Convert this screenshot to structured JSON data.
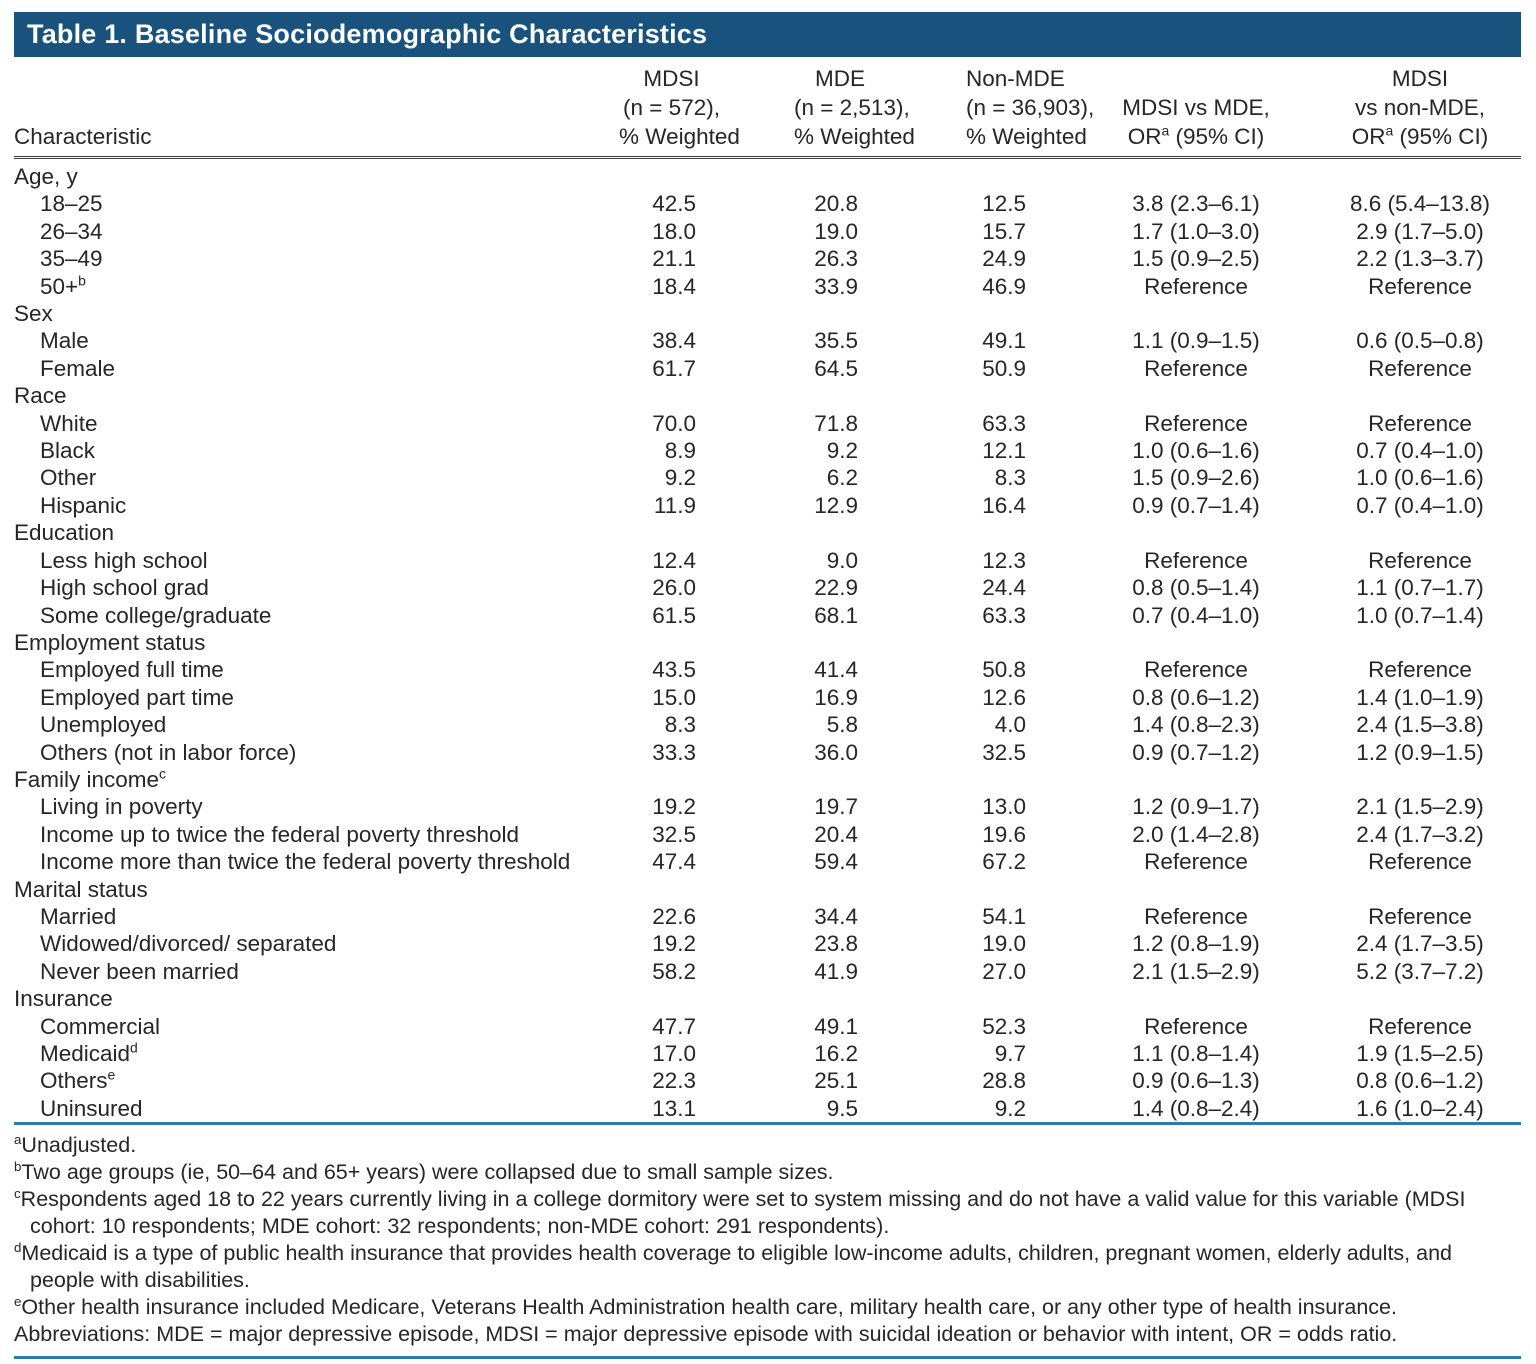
{
  "title": "Table 1. Baseline Sociodemographic Characteristics",
  "colors": {
    "title_bar_bg": "#1a527e",
    "title_text": "#ffffff",
    "rule_blue": "#2e7cab",
    "rule_dark": "#3c3c3c",
    "body_text": "#262626"
  },
  "header": {
    "characteristic": "Characteristic",
    "columns": [
      {
        "lines": [
          "MDSI",
          "(n = 572),",
          "% Weighted"
        ]
      },
      {
        "lines": [
          "MDE",
          "(n = 2,513),",
          "% Weighted"
        ]
      },
      {
        "lines": [
          "Non-MDE",
          "(n = 36,903),",
          "% Weighted"
        ]
      },
      {
        "lines": [
          "MDSI vs MDE,",
          "OR^a (95% CI)"
        ]
      },
      {
        "lines": [
          "MDSI",
          "vs non-MDE,",
          "OR^a (95% CI)"
        ]
      }
    ]
  },
  "sections": [
    {
      "label": "Age, y",
      "rows": [
        {
          "label": "18–25",
          "cells": [
            "42.5",
            "20.8",
            "12.5",
            "3.8 (2.3–6.1)",
            "8.6 (5.4–13.8)"
          ]
        },
        {
          "label": "26–34",
          "cells": [
            "18.0",
            "19.0",
            "15.7",
            "1.7 (1.0–3.0)",
            "2.9 (1.7–5.0)"
          ]
        },
        {
          "label": "35–49",
          "cells": [
            "21.1",
            "26.3",
            "24.9",
            "1.5 (0.9–2.5)",
            "2.2 (1.3–3.7)"
          ]
        },
        {
          "label": "50+^b",
          "cells": [
            "18.4",
            "33.9",
            "46.9",
            "Reference",
            "Reference"
          ]
        }
      ]
    },
    {
      "label": "Sex",
      "rows": [
        {
          "label": "Male",
          "cells": [
            "38.4",
            "35.5",
            "49.1",
            "1.1 (0.9–1.5)",
            "0.6 (0.5–0.8)"
          ]
        },
        {
          "label": "Female",
          "cells": [
            "61.7",
            "64.5",
            "50.9",
            "Reference",
            "Reference"
          ]
        }
      ]
    },
    {
      "label": "Race",
      "rows": [
        {
          "label": "White",
          "cells": [
            "70.0",
            "71.8",
            "63.3",
            "Reference",
            "Reference"
          ]
        },
        {
          "label": "Black",
          "cells": [
            "8.9",
            "9.2",
            "12.1",
            "1.0 (0.6–1.6)",
            "0.7 (0.4–1.0)"
          ]
        },
        {
          "label": "Other",
          "cells": [
            "9.2",
            "6.2",
            "8.3",
            "1.5 (0.9–2.6)",
            "1.0 (0.6–1.6)"
          ]
        },
        {
          "label": "Hispanic",
          "cells": [
            "11.9",
            "12.9",
            "16.4",
            "0.9 (0.7–1.4)",
            "0.7 (0.4–1.0)"
          ]
        }
      ]
    },
    {
      "label": "Education",
      "rows": [
        {
          "label": "Less high school",
          "cells": [
            "12.4",
            "9.0",
            "12.3",
            "Reference",
            "Reference"
          ]
        },
        {
          "label": "High school grad",
          "cells": [
            "26.0",
            "22.9",
            "24.4",
            "0.8 (0.5–1.4)",
            "1.1 (0.7–1.7)"
          ]
        },
        {
          "label": "Some college/graduate",
          "cells": [
            "61.5",
            "68.1",
            "63.3",
            "0.7 (0.4–1.0)",
            "1.0 (0.7–1.4)"
          ]
        }
      ]
    },
    {
      "label": "Employment status",
      "rows": [
        {
          "label": "Employed full time",
          "cells": [
            "43.5",
            "41.4",
            "50.8",
            "Reference",
            "Reference"
          ]
        },
        {
          "label": "Employed part time",
          "cells": [
            "15.0",
            "16.9",
            "12.6",
            "0.8 (0.6–1.2)",
            "1.4 (1.0–1.9)"
          ]
        },
        {
          "label": "Unemployed",
          "cells": [
            "8.3",
            "5.8",
            "4.0",
            "1.4 (0.8–2.3)",
            "2.4 (1.5–3.8)"
          ]
        },
        {
          "label": "Others (not in labor force)",
          "cells": [
            "33.3",
            "36.0",
            "32.5",
            "0.9 (0.7–1.2)",
            "1.2 (0.9–1.5)"
          ]
        }
      ]
    },
    {
      "label": "Family income^c",
      "rows": [
        {
          "label": "Living in poverty",
          "cells": [
            "19.2",
            "19.7",
            "13.0",
            "1.2 (0.9–1.7)",
            "2.1 (1.5–2.9)"
          ]
        },
        {
          "label": "Income up to twice the federal poverty threshold",
          "cells": [
            "32.5",
            "20.4",
            "19.6",
            "2.0 (1.4–2.8)",
            "2.4 (1.7–3.2)"
          ]
        },
        {
          "label": "Income more than twice the federal poverty threshold",
          "cells": [
            "47.4",
            "59.4",
            "67.2",
            "Reference",
            "Reference"
          ]
        }
      ]
    },
    {
      "label": "Marital status",
      "rows": [
        {
          "label": "Married",
          "cells": [
            "22.6",
            "34.4",
            "54.1",
            "Reference",
            "Reference"
          ]
        },
        {
          "label": "Widowed/divorced/ separated",
          "cells": [
            "19.2",
            "23.8",
            "19.0",
            "1.2 (0.8–1.9)",
            "2.4 (1.7–3.5)"
          ]
        },
        {
          "label": "Never been married",
          "cells": [
            "58.2",
            "41.9",
            "27.0",
            "2.1 (1.5–2.9)",
            "5.2 (3.7–7.2)"
          ]
        }
      ]
    },
    {
      "label": "Insurance",
      "rows": [
        {
          "label": "Commercial",
          "cells": [
            "47.7",
            "49.1",
            "52.3",
            "Reference",
            "Reference"
          ]
        },
        {
          "label": "Medicaid^d",
          "cells": [
            "17.0",
            "16.2",
            "9.7",
            "1.1 (0.8–1.4)",
            "1.9 (1.5–2.5)"
          ]
        },
        {
          "label": "Others^e",
          "cells": [
            "22.3",
            "25.1",
            "28.8",
            "0.9 (0.6–1.3)",
            "0.8 (0.6–1.2)"
          ]
        },
        {
          "label": "Uninsured",
          "cells": [
            "13.1",
            "9.5",
            "9.2",
            "1.4 (0.8–2.4)",
            "1.6 (1.0–2.4)"
          ]
        }
      ]
    }
  ],
  "footnotes": [
    {
      "sup": "a",
      "text": "Unadjusted."
    },
    {
      "sup": "b",
      "text": "Two age groups (ie, 50–64 and 65+ years) were collapsed due to small sample sizes."
    },
    {
      "sup": "c",
      "text": "Respondents aged 18 to 22 years currently living in a college dormitory were set to system missing and do not have a valid value for this variable (MDSI cohort: 10 respondents; MDE cohort: 32 respondents; non-MDE cohort: 291 respondents)."
    },
    {
      "sup": "d",
      "text": "Medicaid is a type of public health insurance that provides health coverage to eligible low-income adults, children, pregnant women, elderly adults, and people with disabilities."
    },
    {
      "sup": "e",
      "text": "Other health insurance included Medicare, Veterans Health Administration health care, military health care, or any other type of health insurance."
    },
    {
      "sup": "",
      "text": "Abbreviations: MDE = major depressive episode, MDSI = major depressive episode with suicidal ideation or behavior with intent, OR = odds ratio."
    }
  ]
}
